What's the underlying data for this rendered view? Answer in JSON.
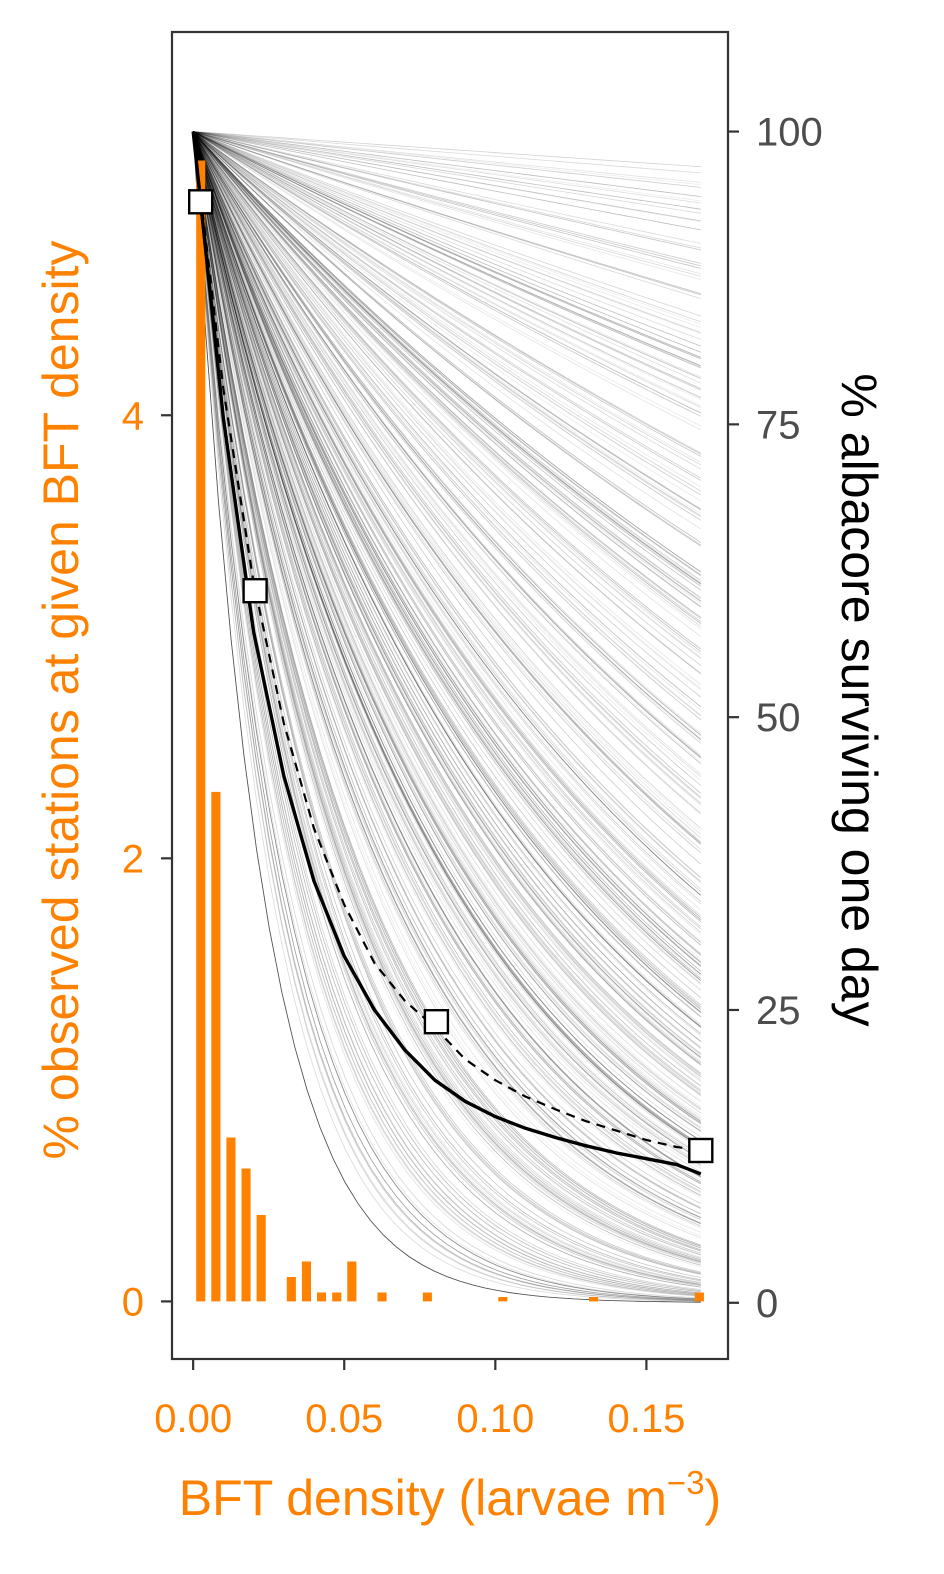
{
  "chart_data": {
    "type": "line",
    "xlabel_main": "BFT density (larvae m",
    "xlabel_sup": "−3",
    "xlabel_end": ")",
    "ylabel_left": "% observed stations at given BFT density",
    "ylabel_right": "% albacore surviving one day",
    "xlim": [
      -0.007,
      0.177
    ],
    "ylim_left": [
      -0.26,
      5.73
    ],
    "ylim_right": [
      -4.8,
      108.5
    ],
    "x_ticks": [
      0.0,
      0.05,
      0.1,
      0.15
    ],
    "x_tick_labels": [
      "0.00",
      "0.05",
      "0.10",
      "0.15"
    ],
    "y_left_ticks": [
      0,
      2,
      4
    ],
    "y_left_tick_labels": [
      "0",
      "2",
      "4"
    ],
    "y_right_ticks": [
      0,
      25,
      50,
      75,
      100
    ],
    "y_right_tick_labels": [
      "0",
      "25",
      "50",
      "75",
      "100"
    ],
    "grid": false,
    "colors": {
      "orange": "#ff8100",
      "frame": "#333333",
      "tick_text_right": "#4d4d4d",
      "mean_curve": "#000000",
      "ensemble": "#000000"
    },
    "histogram": {
      "axis": "left",
      "bar_width": 0.003,
      "x": [
        0.0025,
        0.0075,
        0.0125,
        0.0175,
        0.0225,
        0.0325,
        0.0375,
        0.0425,
        0.0475,
        0.0525,
        0.0625,
        0.0775,
        0.1025,
        0.1325,
        0.1675
      ],
      "values": [
        5.15,
        2.3,
        0.74,
        0.6,
        0.39,
        0.11,
        0.18,
        0.04,
        0.04,
        0.18,
        0.04,
        0.04,
        0.02,
        0.02,
        0.04
      ]
    },
    "mean_curve": {
      "axis": "right",
      "style": "solid",
      "x": [
        0.0,
        0.01,
        0.02,
        0.03,
        0.04,
        0.05,
        0.06,
        0.07,
        0.08,
        0.09,
        0.1,
        0.11,
        0.12,
        0.13,
        0.14,
        0.15,
        0.16,
        0.168
      ],
      "values": [
        100,
        75.5,
        57.3,
        45.0,
        36.0,
        29.6,
        25.0,
        21.6,
        19.0,
        17.2,
        15.9,
        14.9,
        14.1,
        13.4,
        12.8,
        12.3,
        11.8,
        11.0
      ]
    },
    "observed_curve": {
      "axis": "right",
      "style": "dashed",
      "x": [
        0.0,
        0.01,
        0.02,
        0.03,
        0.04,
        0.05,
        0.06,
        0.07,
        0.08,
        0.09,
        0.1,
        0.11,
        0.12,
        0.13,
        0.14,
        0.15,
        0.16,
        0.168
      ],
      "values": [
        100,
        78.0,
        61.5,
        49.5,
        40.5,
        34.0,
        29.0,
        25.8,
        23.5,
        20.8,
        19.0,
        17.6,
        16.5,
        15.5,
        14.7,
        13.9,
        13.3,
        13.0
      ]
    },
    "points": {
      "axis": "right",
      "x": [
        0.0025,
        0.0205,
        0.0805,
        0.168
      ],
      "values": [
        94.0,
        60.8,
        24.0,
        13.0
      ]
    },
    "ensemble": {
      "axis": "right",
      "count": 400,
      "seed": 20231,
      "end_range": [
        0,
        100
      ],
      "x_max": 0.168,
      "model": "survival = 100 * exp(-k * x) from x = 0 to x_max; k spread so end-of-range survival spans end_range, concentrated near 0"
    }
  }
}
